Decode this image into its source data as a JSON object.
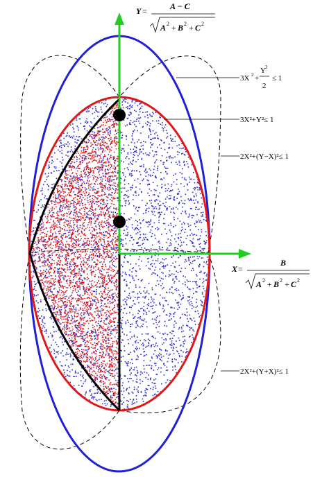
{
  "colors": {
    "outer_ellipse": "#1f1fd6",
    "inner_ellipse": "#e01818",
    "axes": "#22cc22",
    "dots_blue": "#2a2ad0",
    "dots_red": "#e01818",
    "boundary": "#000000",
    "dashed": "#000000"
  },
  "axis_y": {
    "prefix": "Y",
    "eq": "=",
    "numerator": "A − C",
    "radicand_a": "A",
    "radicand_b": "B",
    "radicand_c": "C",
    "plus": "+",
    "exp": "2"
  },
  "axis_x": {
    "prefix": "X",
    "eq": "=",
    "numerator": "B",
    "radicand_a": "A",
    "radicand_b": "B",
    "radicand_c": "C",
    "plus": "+",
    "exp": "2"
  },
  "curve_labels": {
    "outer": {
      "lead": "3X",
      "exp": "2",
      "plus": "+",
      "num": "Y",
      "num_exp": "2",
      "den": "2",
      "tail": "≤ 1"
    },
    "inner": {
      "text": "3X²+Y²≤ 1"
    },
    "dashed_top": {
      "text": "2X²+(Y−X)²≤ 1"
    },
    "dashed_bottom": {
      "text": "2X²+(Y+X)²≤ 1"
    }
  }
}
